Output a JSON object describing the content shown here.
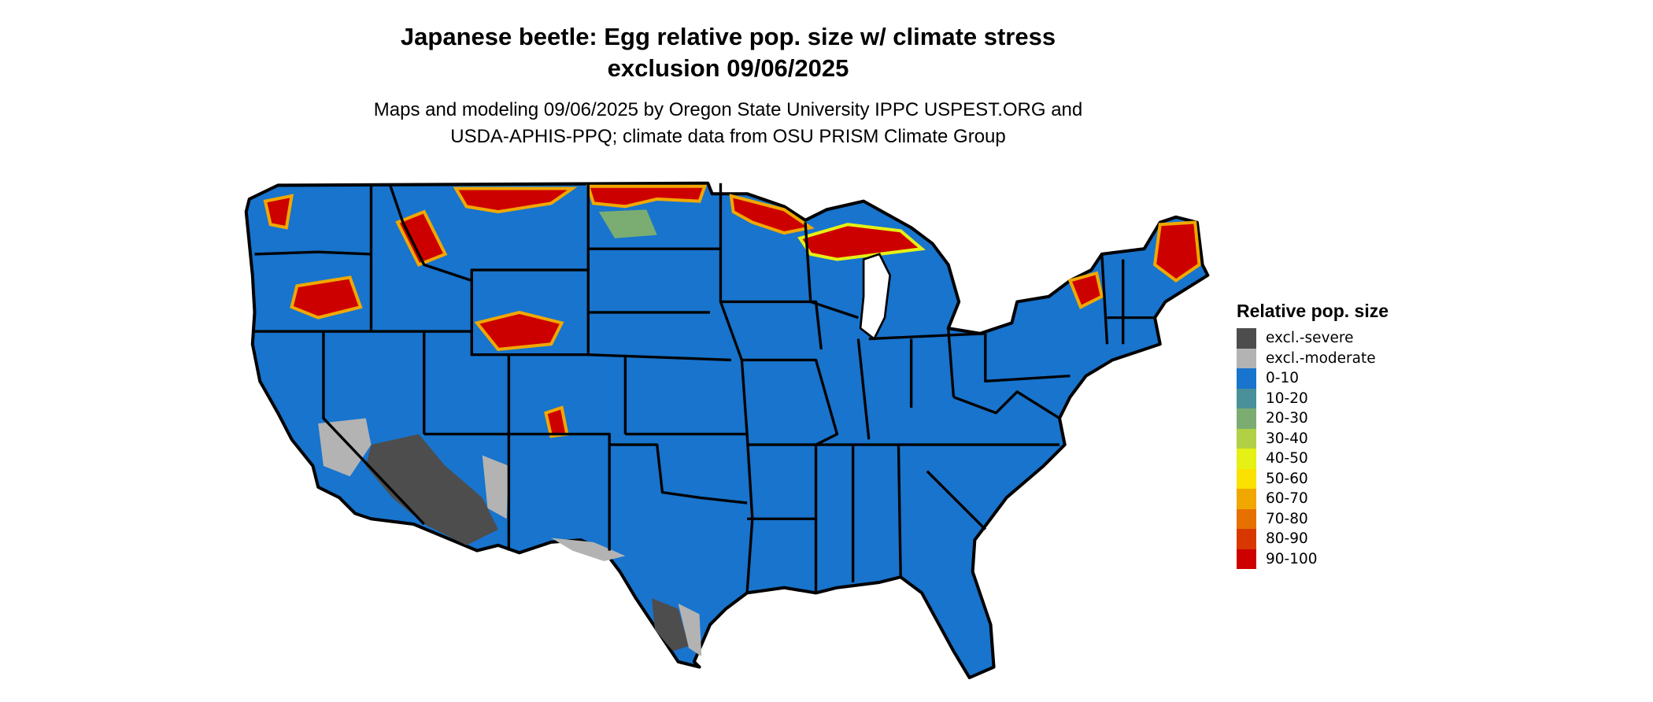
{
  "title": {
    "line1": "Japanese beetle: Egg relative pop. size w/ climate stress",
    "line2": "exclusion 09/06/2025"
  },
  "subtitle": {
    "line1": "Maps and modeling 09/06/2025 by Oregon State University IPPC USPEST.ORG and",
    "line2": "USDA-APHIS-PPQ; climate data from OSU PRISM Climate Group"
  },
  "legend": {
    "title": "Relative pop. size",
    "items": [
      {
        "label": "excl.-severe",
        "color": "#4d4d4d"
      },
      {
        "label": "excl.-moderate",
        "color": "#b3b3b3"
      },
      {
        "label": "0-10",
        "color": "#1874cd"
      },
      {
        "label": "10-20",
        "color": "#4a909a"
      },
      {
        "label": "20-30",
        "color": "#7bad72"
      },
      {
        "label": "30-40",
        "color": "#b2d045"
      },
      {
        "label": "40-50",
        "color": "#e5f014"
      },
      {
        "label": "50-60",
        "color": "#fae100"
      },
      {
        "label": "60-70",
        "color": "#f0a800"
      },
      {
        "label": "70-80",
        "color": "#e67000"
      },
      {
        "label": "80-90",
        "color": "#d83800"
      },
      {
        "label": "90-100",
        "color": "#cd0000"
      }
    ]
  }
}
